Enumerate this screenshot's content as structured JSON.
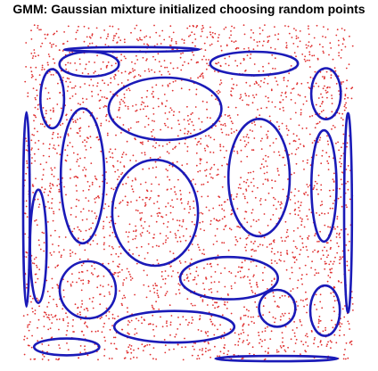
{
  "chart_data": {
    "type": "scatter",
    "title": "GMM: Gaussian mixture initialized choosing random points",
    "xlim": [
      0,
      1
    ],
    "ylim": [
      0,
      1
    ],
    "grid": false,
    "point_color": "#e03030",
    "ellipse_color": "#1a1ab8",
    "point_count": 3000,
    "components": [
      {
        "cx": 0.33,
        "cy": 0.927,
        "rx": 0.205,
        "ry": 0.007
      },
      {
        "cx": 0.2,
        "cy": 0.883,
        "rx": 0.09,
        "ry": 0.037
      },
      {
        "cx": 0.7,
        "cy": 0.885,
        "rx": 0.133,
        "ry": 0.035
      },
      {
        "cx": 0.088,
        "cy": 0.78,
        "rx": 0.036,
        "ry": 0.088
      },
      {
        "cx": 0.918,
        "cy": 0.795,
        "rx": 0.045,
        "ry": 0.076
      },
      {
        "cx": 0.43,
        "cy": 0.75,
        "rx": 0.171,
        "ry": 0.093
      },
      {
        "cx": 0.01,
        "cy": 0.45,
        "rx": 0.01,
        "ry": 0.29
      },
      {
        "cx": 0.985,
        "cy": 0.44,
        "rx": 0.012,
        "ry": 0.297
      },
      {
        "cx": 0.18,
        "cy": 0.55,
        "rx": 0.066,
        "ry": 0.201
      },
      {
        "cx": 0.715,
        "cy": 0.545,
        "rx": 0.093,
        "ry": 0.175
      },
      {
        "cx": 0.912,
        "cy": 0.52,
        "rx": 0.038,
        "ry": 0.166
      },
      {
        "cx": 0.046,
        "cy": 0.34,
        "rx": 0.025,
        "ry": 0.169
      },
      {
        "cx": 0.4,
        "cy": 0.44,
        "rx": 0.13,
        "ry": 0.158
      },
      {
        "cx": 0.624,
        "cy": 0.245,
        "rx": 0.148,
        "ry": 0.063
      },
      {
        "cx": 0.196,
        "cy": 0.21,
        "rx": 0.085,
        "ry": 0.085
      },
      {
        "cx": 0.77,
        "cy": 0.155,
        "rx": 0.055,
        "ry": 0.055
      },
      {
        "cx": 0.915,
        "cy": 0.148,
        "rx": 0.045,
        "ry": 0.075
      },
      {
        "cx": 0.458,
        "cy": 0.1,
        "rx": 0.182,
        "ry": 0.047
      },
      {
        "cx": 0.132,
        "cy": 0.04,
        "rx": 0.099,
        "ry": 0.025
      },
      {
        "cx": 0.768,
        "cy": 0.005,
        "rx": 0.185,
        "ry": 0.008
      }
    ]
  }
}
